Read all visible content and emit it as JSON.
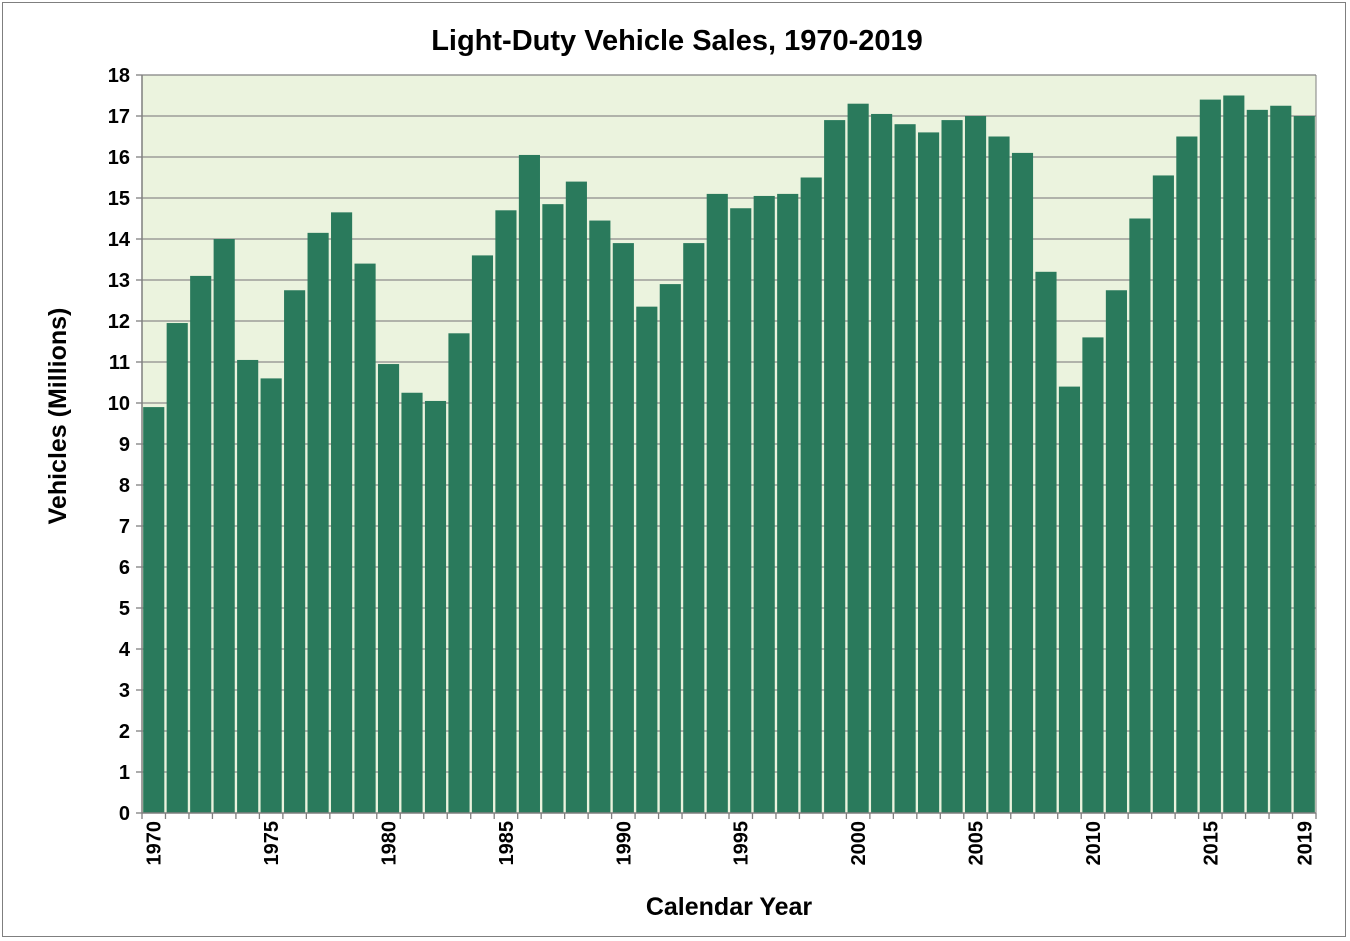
{
  "colors": {
    "plot_background": "#ebf3de",
    "bar_fill": "#2a7a5c",
    "gridline": "#8c8c8c",
    "axis_line": "#7f7f7f"
  },
  "chart_data": {
    "type": "bar",
    "title": "Light-Duty Vehicle Sales, 1970-2019",
    "xlabel": "Calendar Year",
    "ylabel": "Vehicles (Millions)",
    "ylim": [
      0,
      18
    ],
    "yticks": [
      "0",
      "1",
      "2",
      "3",
      "4",
      "5",
      "6",
      "7",
      "8",
      "9",
      "10",
      "11",
      "12",
      "13",
      "14",
      "15",
      "16",
      "17",
      "18"
    ],
    "x_tick_labels": [
      "1970",
      "1975",
      "1980",
      "1985",
      "1990",
      "1995",
      "2000",
      "2005",
      "2010",
      "2015",
      "2019"
    ],
    "grid": true,
    "legend": "none",
    "categories": [
      "1970",
      "1971",
      "1972",
      "1973",
      "1974",
      "1975",
      "1976",
      "1977",
      "1978",
      "1979",
      "1980",
      "1981",
      "1982",
      "1983",
      "1984",
      "1985",
      "1986",
      "1987",
      "1988",
      "1989",
      "1990",
      "1991",
      "1992",
      "1993",
      "1994",
      "1995",
      "1996",
      "1997",
      "1998",
      "1999",
      "2000",
      "2001",
      "2002",
      "2003",
      "2004",
      "2005",
      "2006",
      "2007",
      "2008",
      "2009",
      "2010",
      "2011",
      "2012",
      "2013",
      "2014",
      "2015",
      "2016",
      "2017",
      "2018",
      "2019"
    ],
    "values": [
      9.9,
      11.95,
      13.1,
      14.0,
      11.05,
      10.6,
      12.75,
      14.15,
      14.65,
      13.4,
      10.95,
      10.25,
      10.05,
      11.7,
      13.6,
      14.7,
      16.05,
      14.85,
      15.4,
      14.45,
      13.9,
      12.35,
      12.9,
      13.9,
      15.1,
      14.75,
      15.05,
      15.1,
      15.5,
      16.9,
      17.3,
      17.05,
      16.8,
      16.6,
      16.9,
      17.0,
      16.5,
      16.1,
      13.2,
      10.4,
      11.6,
      12.75,
      14.5,
      15.55,
      16.5,
      17.4,
      17.5,
      17.15,
      17.25,
      17.0
    ]
  }
}
